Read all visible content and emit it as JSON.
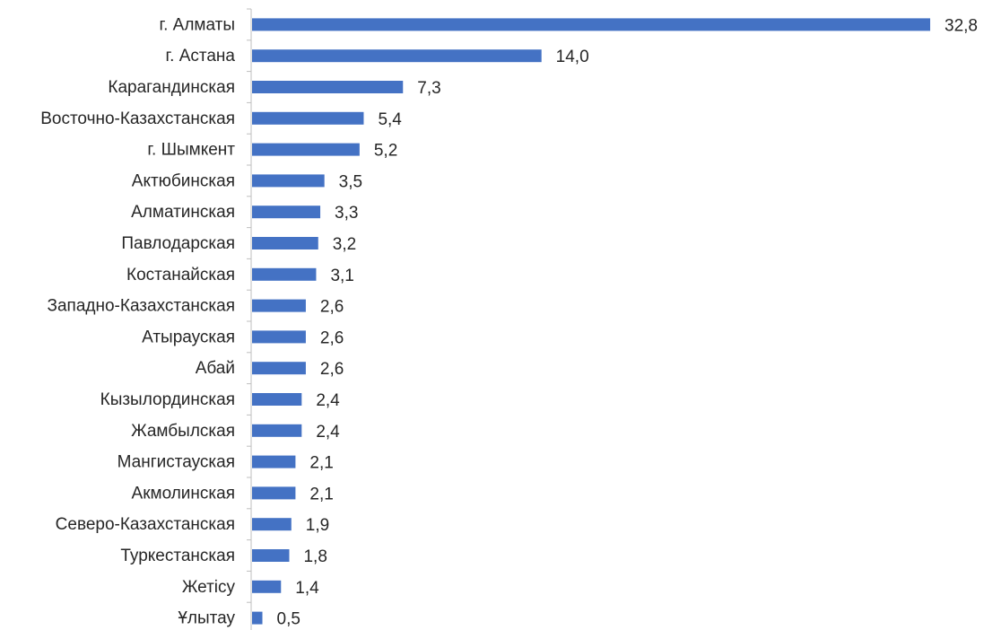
{
  "chart_data": {
    "type": "bar",
    "orientation": "horizontal",
    "categories": [
      "г. Алматы",
      "г. Астана",
      "Карагандинская",
      "Восточно-Казахстанская",
      "г. Шымкент",
      "Актюбинская",
      "Алматинская",
      "Павлодарская",
      "Костанайская",
      "Западно-Казахстанская",
      "Атырауская",
      "Абай",
      "Кызылординская",
      "Жамбылская",
      "Мангистауская",
      "Акмолинская",
      "Северо-Казахстанская",
      "Туркестанская",
      "Жетісу",
      "Ұлытау"
    ],
    "values": [
      32.8,
      14.0,
      7.3,
      5.4,
      5.2,
      3.5,
      3.3,
      3.2,
      3.1,
      2.6,
      2.6,
      2.6,
      2.4,
      2.4,
      2.1,
      2.1,
      1.9,
      1.8,
      1.4,
      0.5
    ],
    "value_labels": [
      "32,8",
      "14,0",
      "7,3",
      "5,4",
      "5,2",
      "3,5",
      "3,3",
      "3,2",
      "3,1",
      "2,6",
      "2,6",
      "2,6",
      "2,4",
      "2,4",
      "2,1",
      "2,1",
      "1,9",
      "1,8",
      "1,4",
      "0,5"
    ],
    "title": "",
    "xlabel": "",
    "ylabel": "",
    "xlim": [
      0,
      35
    ],
    "grid": false,
    "legend": "none",
    "bar_color": "#4472C4",
    "axis_color": "#BFBFBF"
  }
}
